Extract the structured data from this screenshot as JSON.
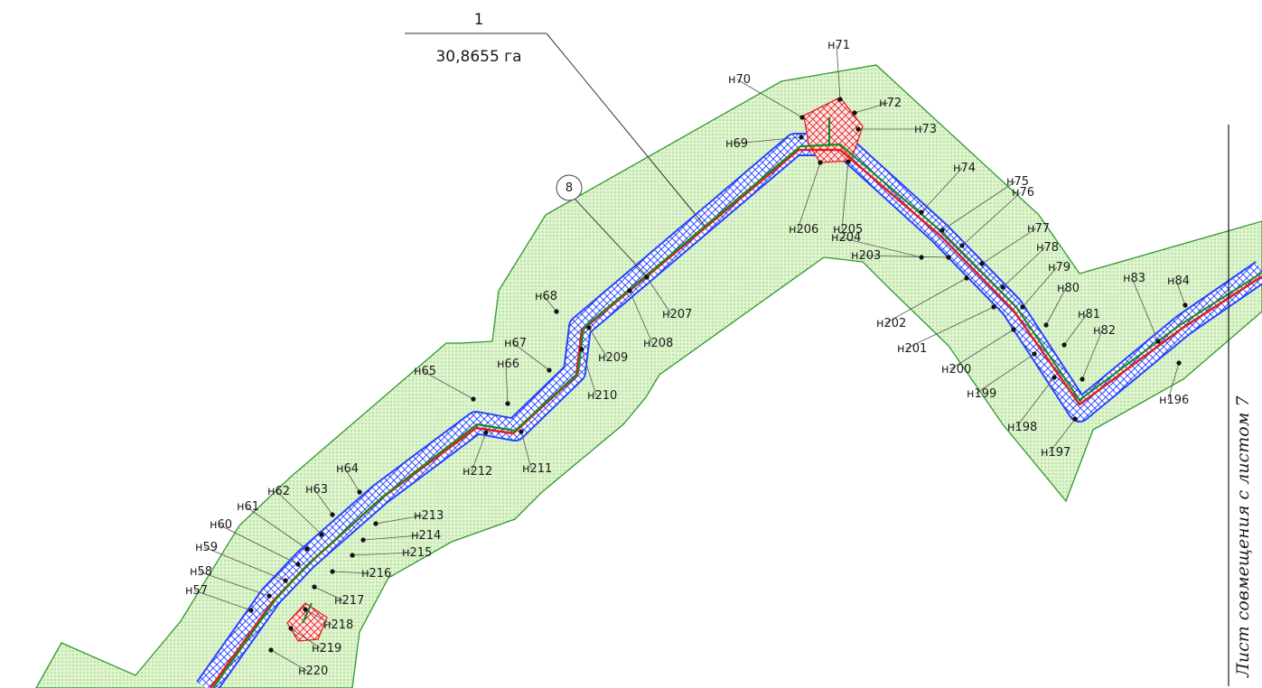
{
  "header": {
    "number": "1",
    "area": "30,8655 га"
  },
  "circle_label": "8",
  "sheet_note": "Лист совмещения с листом 7",
  "colors": {
    "zone_fill": "#d6f0c4",
    "zone_stroke": "#2e9a2e",
    "hatch": "#1e3cff",
    "red": "#e02020",
    "axis": "#1f8a1f"
  },
  "points": [
    {
      "label": "н57"
    },
    {
      "label": "н58"
    },
    {
      "label": "н59"
    },
    {
      "label": "н60"
    },
    {
      "label": "н61"
    },
    {
      "label": "н62"
    },
    {
      "label": "н63"
    },
    {
      "label": "н64"
    },
    {
      "label": "н65"
    },
    {
      "label": "н66"
    },
    {
      "label": "н67"
    },
    {
      "label": "н68"
    },
    {
      "label": "н69"
    },
    {
      "label": "н70"
    },
    {
      "label": "н71"
    },
    {
      "label": "н72"
    },
    {
      "label": "н73"
    },
    {
      "label": "н74"
    },
    {
      "label": "н75"
    },
    {
      "label": "н76"
    },
    {
      "label": "н77"
    },
    {
      "label": "н78"
    },
    {
      "label": "н79"
    },
    {
      "label": "н80"
    },
    {
      "label": "н81"
    },
    {
      "label": "н82"
    },
    {
      "label": "н83"
    },
    {
      "label": "н84"
    },
    {
      "label": "н196"
    },
    {
      "label": "н197"
    },
    {
      "label": "н198"
    },
    {
      "label": "н199"
    },
    {
      "label": "н200"
    },
    {
      "label": "н201"
    },
    {
      "label": "н202"
    },
    {
      "label": "н203"
    },
    {
      "label": "н204"
    },
    {
      "label": "н205"
    },
    {
      "label": "н206"
    },
    {
      "label": "н207"
    },
    {
      "label": "н208"
    },
    {
      "label": "н209"
    },
    {
      "label": "н210"
    },
    {
      "label": "н211"
    },
    {
      "label": "н212"
    },
    {
      "label": "н213"
    },
    {
      "label": "н214"
    },
    {
      "label": "н215"
    },
    {
      "label": "н216"
    },
    {
      "label": "н217"
    },
    {
      "label": "н218"
    },
    {
      "label": "н219"
    },
    {
      "label": "н220"
    }
  ]
}
